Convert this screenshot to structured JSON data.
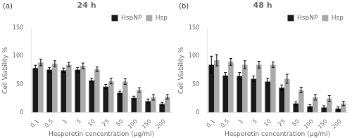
{
  "chart_data": [
    {
      "type": "bar",
      "title": "24 h",
      "annotations": [
        "(a)"
      ],
      "xlabel": "Hesperetin concentration (μg/ml)",
      "ylabel": "Cell Viability %",
      "categories": [
        "0.1",
        "0.5",
        "1",
        "5",
        "10",
        "25",
        "50",
        "100",
        "150",
        "200"
      ],
      "series": [
        {
          "name": "HspNP",
          "color": "#1a1a1a",
          "values": [
            79,
            76,
            75,
            76,
            57,
            46,
            35,
            26,
            20,
            15
          ],
          "errors": [
            5,
            4,
            4,
            4,
            4,
            4,
            3,
            3,
            4,
            3
          ]
        },
        {
          "name": "Hsp",
          "color": "#aaaaaa",
          "values": [
            89,
            87,
            85,
            83,
            77,
            56,
            55,
            40,
            27,
            28
          ],
          "errors": [
            6,
            5,
            4,
            5,
            4,
            5,
            5,
            4,
            5,
            4
          ]
        }
      ],
      "ylim": [
        0,
        150
      ],
      "yticks": [
        0,
        50,
        100,
        150
      ],
      "grid": false,
      "legend": "upper right"
    },
    {
      "type": "bar",
      "title": "48 h",
      "annotations": [
        "(b)"
      ],
      "xlabel": "Hesperetin concentration (μg/ml)",
      "ylabel": "Cell Viability %",
      "categories": [
        "0.1",
        "0.5",
        "1",
        "5",
        "10",
        "25",
        "50",
        "100",
        "150",
        "200"
      ],
      "series": [
        {
          "name": "HspNP",
          "color": "#1a1a1a",
          "values": [
            85,
            66,
            65,
            60,
            55,
            44,
            16,
            11,
            9,
            7
          ],
          "errors": [
            15,
            5,
            6,
            5,
            6,
            5,
            3,
            3,
            3,
            3
          ]
        },
        {
          "name": "Hsp",
          "color": "#aaaaaa",
          "values": [
            93,
            90,
            85,
            85,
            85,
            60,
            40,
            27,
            25,
            16
          ],
          "errors": [
            10,
            6,
            7,
            6,
            5,
            8,
            5,
            5,
            5,
            4
          ]
        }
      ],
      "ylim": [
        0,
        150
      ],
      "yticks": [
        0,
        50,
        100,
        150
      ],
      "grid": false,
      "legend": "upper right"
    }
  ]
}
